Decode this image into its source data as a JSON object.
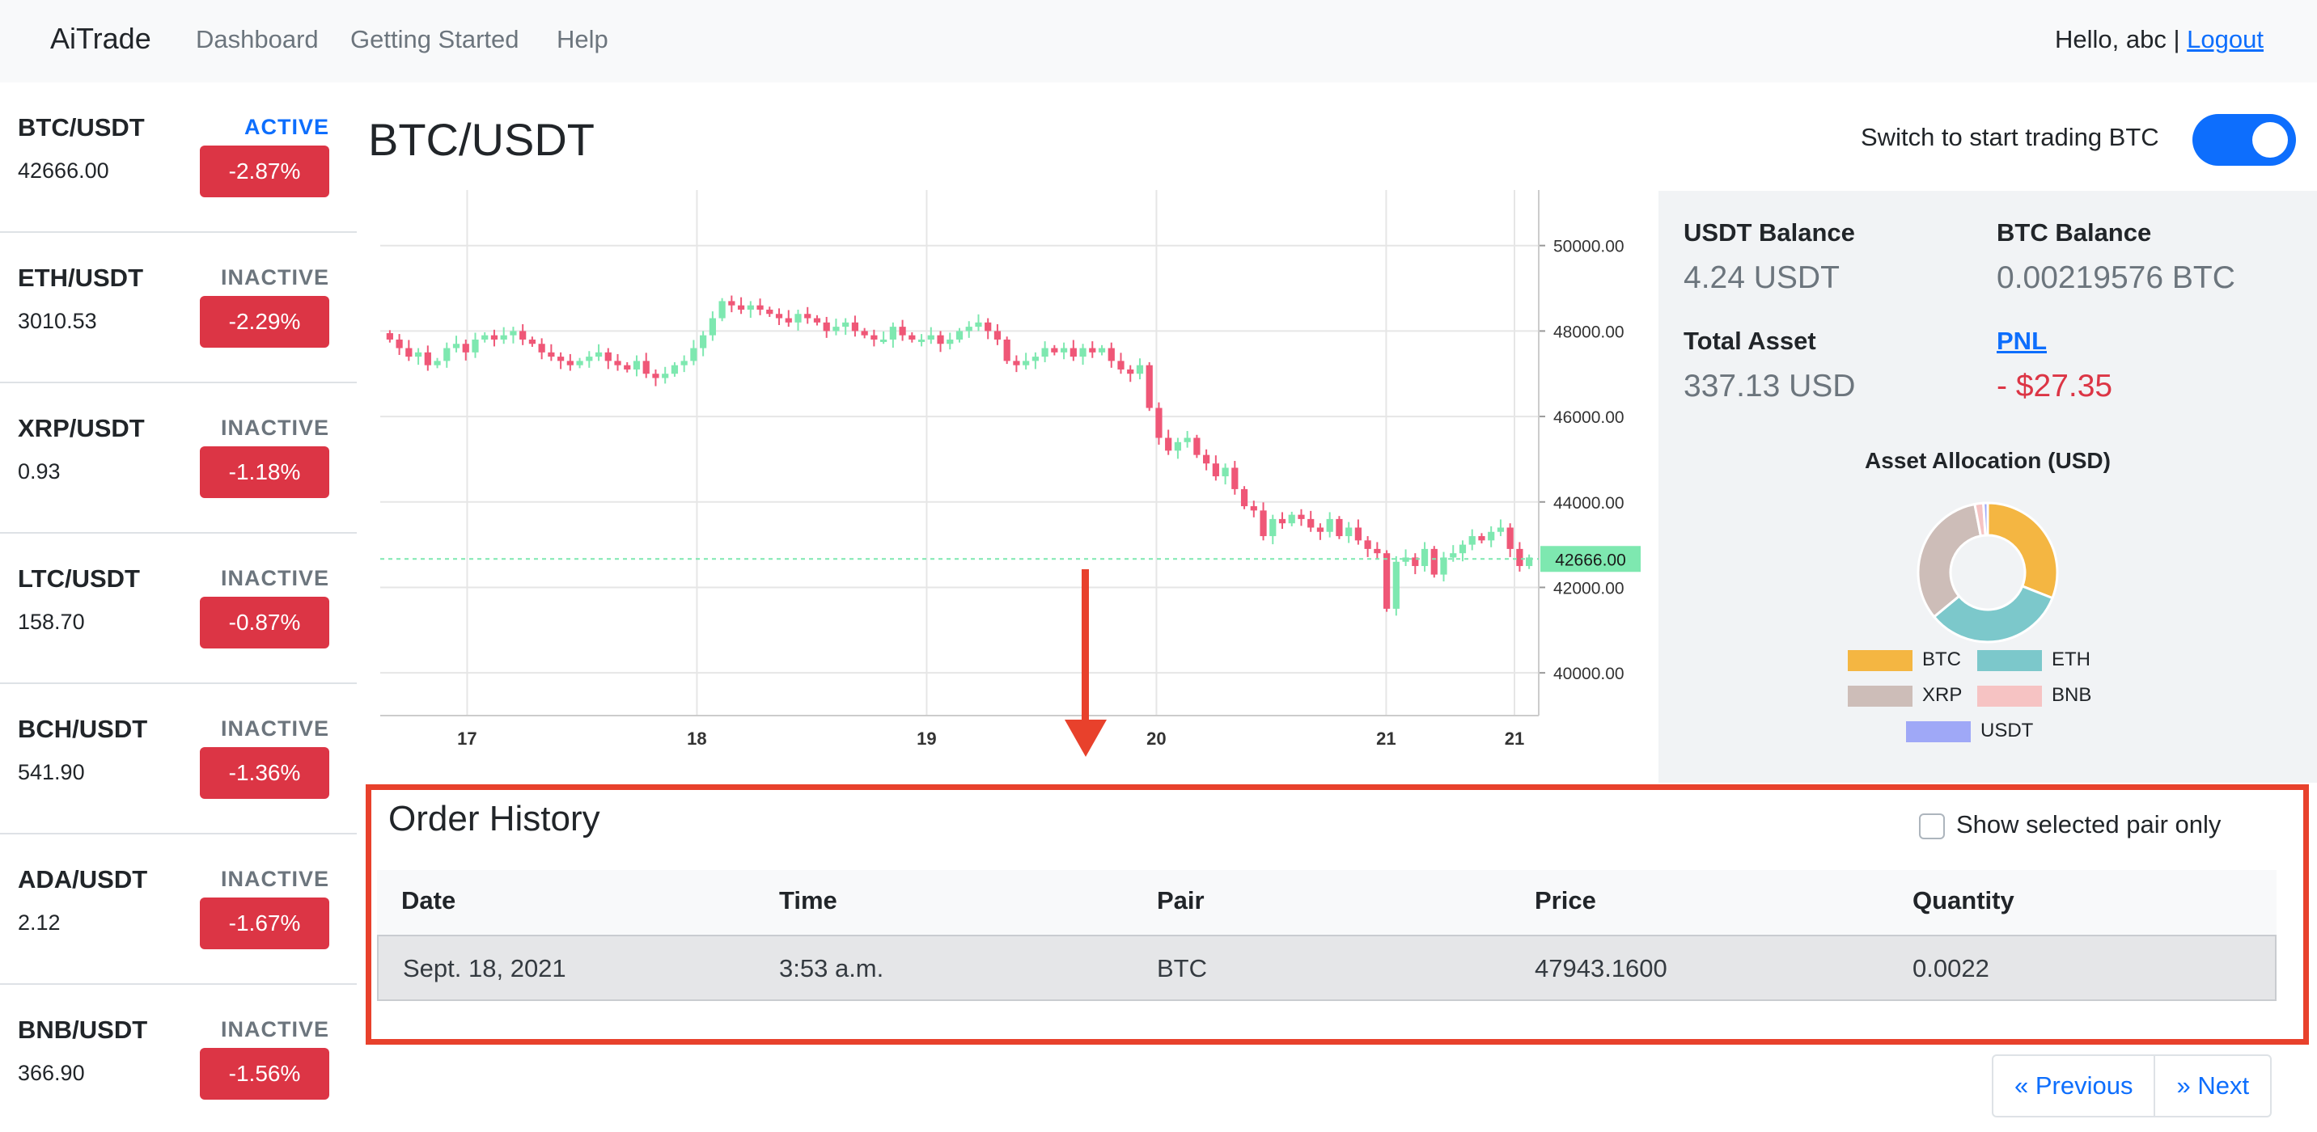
{
  "navbar": {
    "brand": "AiTrade",
    "links": [
      "Dashboard",
      "Getting Started",
      "Help"
    ],
    "greeting": "Hello, abc |",
    "logout": "Logout"
  },
  "sidebar": {
    "pairs": [
      {
        "name": "BTC/USDT",
        "status": "ACTIVE",
        "price": "42666.00",
        "change": "-2.87%"
      },
      {
        "name": "ETH/USDT",
        "status": "INACTIVE",
        "price": "3010.53",
        "change": "-2.29%"
      },
      {
        "name": "XRP/USDT",
        "status": "INACTIVE",
        "price": "0.93",
        "change": "-1.18%"
      },
      {
        "name": "LTC/USDT",
        "status": "INACTIVE",
        "price": "158.70",
        "change": "-0.87%"
      },
      {
        "name": "BCH/USDT",
        "status": "INACTIVE",
        "price": "541.90",
        "change": "-1.36%"
      },
      {
        "name": "ADA/USDT",
        "status": "INACTIVE",
        "price": "2.12",
        "change": "-1.67%"
      },
      {
        "name": "BNB/USDT",
        "status": "INACTIVE",
        "price": "366.90",
        "change": "-1.56%"
      }
    ]
  },
  "main": {
    "title": "BTC/USDT",
    "toggle_label": "Switch to start trading BTC",
    "toggle_on": true
  },
  "chart_data": {
    "type": "candlestick",
    "x_ticks": [
      "17",
      "18",
      "19",
      "20",
      "21",
      "21"
    ],
    "y_ticks": [
      "50000.00",
      "48000.00",
      "46000.00",
      "44000.00",
      "42000.00",
      "40000.00"
    ],
    "ylim": [
      39000,
      51300
    ],
    "current_price": "42666.00",
    "current_price_value": 42666,
    "colors": {
      "up": "#7ee8b0",
      "down": "#ef5777",
      "price_tag": "#7ee8b0"
    },
    "closes": [
      47800,
      47600,
      47400,
      47500,
      47200,
      47300,
      47600,
      47700,
      47500,
      47800,
      47900,
      47800,
      47900,
      48000,
      47800,
      47700,
      47500,
      47400,
      47300,
      47200,
      47300,
      47400,
      47500,
      47300,
      47200,
      47100,
      47300,
      47000,
      46900,
      47000,
      47200,
      47300,
      47600,
      47900,
      48300,
      48700,
      48600,
      48500,
      48600,
      48500,
      48400,
      48300,
      48200,
      48400,
      48300,
      48200,
      48000,
      48100,
      48200,
      48000,
      47900,
      47800,
      47800,
      48100,
      47900,
      47800,
      47800,
      47900,
      47700,
      47800,
      48000,
      48100,
      48200,
      48000,
      47800,
      47300,
      47200,
      47300,
      47400,
      47600,
      47500,
      47600,
      47400,
      47600,
      47500,
      47600,
      47300,
      47100,
      47000,
      47200,
      46200,
      45500,
      45200,
      45400,
      45500,
      45100,
      44900,
      44600,
      44800,
      44300,
      43900,
      43800,
      43200,
      43600,
      43500,
      43700,
      43600,
      43400,
      43300,
      43600,
      43200,
      43400,
      43100,
      42900,
      42800,
      41500,
      42600,
      42700,
      42500,
      42900,
      42300,
      42700,
      42800,
      43000,
      43200,
      43100,
      43300,
      43400,
      42900,
      42500,
      42700
    ]
  },
  "balances": {
    "usdt_label": "USDT Balance",
    "usdt_value": "4.24 USDT",
    "btc_label": "BTC Balance",
    "btc_value": "0.00219576 BTC",
    "total_label": "Total Asset",
    "total_value": "337.13 USD",
    "pnl_label": "PNL",
    "pnl_value": "- $27.35"
  },
  "allocation": {
    "title": "Asset Allocation (USD)",
    "slices": [
      {
        "name": "BTC",
        "value": 31,
        "color": "#f4b642"
      },
      {
        "name": "ETH",
        "value": 33,
        "color": "#7cc8cb"
      },
      {
        "name": "XRP",
        "value": 33,
        "color": "#cdbdb8"
      },
      {
        "name": "BNB",
        "value": 2,
        "color": "#f6c3c3"
      },
      {
        "name": "USDT",
        "value": 1,
        "color": "#9fa8f7"
      }
    ]
  },
  "order_history": {
    "title": "Order History",
    "filter_label": "Show selected pair only",
    "columns": [
      "Date",
      "Time",
      "Pair",
      "Price",
      "Quantity"
    ],
    "rows": [
      [
        "Sept. 18, 2021",
        "3:53 a.m.",
        "BTC",
        "47943.1600",
        "0.0022"
      ]
    ]
  },
  "pagination": {
    "previous": "« Previous",
    "next": "» Next"
  }
}
